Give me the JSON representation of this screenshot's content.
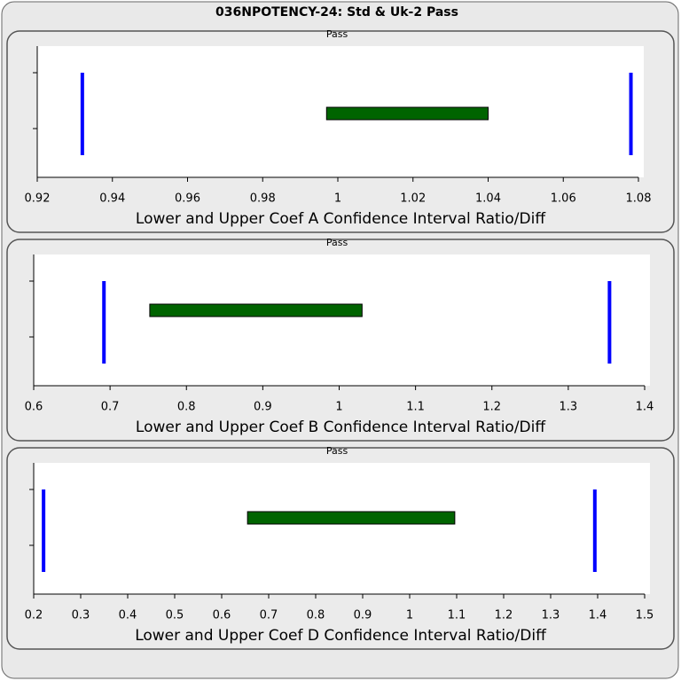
{
  "title": "036NPOTENCY-24:  Std & Uk-2 Pass",
  "chart_data": [
    {
      "type": "interval",
      "title": "Pass",
      "xlabel": "Lower and Upper Coef A Confidence Interval Ratio/Diff",
      "xlim": [
        0.92,
        1.08
      ],
      "xticks": [
        0.92,
        0.94,
        0.96,
        0.98,
        1,
        1.02,
        1.04,
        1.06,
        1.08
      ],
      "interval": [
        0.997,
        1.04
      ],
      "limits": [
        0.932,
        1.078
      ],
      "color": "#006400",
      "limit_color": "#0000ff"
    },
    {
      "type": "interval",
      "title": "Pass",
      "xlabel": "Lower and Upper Coef B Confidence Interval Ratio/Diff",
      "xlim": [
        0.6,
        1.4
      ],
      "xticks": [
        0.6,
        0.7,
        0.8,
        0.9,
        1,
        1.1,
        1.2,
        1.3,
        1.4
      ],
      "interval": [
        0.752,
        1.03
      ],
      "limits": [
        0.692,
        1.354
      ],
      "color": "#006400",
      "limit_color": "#0000ff"
    },
    {
      "type": "interval",
      "title": "Pass",
      "xlabel": "Lower and Upper Coef D Confidence Interval Ratio/Diff",
      "xlim": [
        0.2,
        1.5
      ],
      "xticks": [
        0.2,
        0.3,
        0.4,
        0.5,
        0.6,
        0.7,
        0.8,
        0.9,
        1,
        1.1,
        1.2,
        1.3,
        1.4,
        1.5
      ],
      "interval": [
        0.655,
        1.096
      ],
      "limits": [
        0.221,
        1.394
      ],
      "color": "#006400",
      "limit_color": "#0000ff"
    }
  ]
}
